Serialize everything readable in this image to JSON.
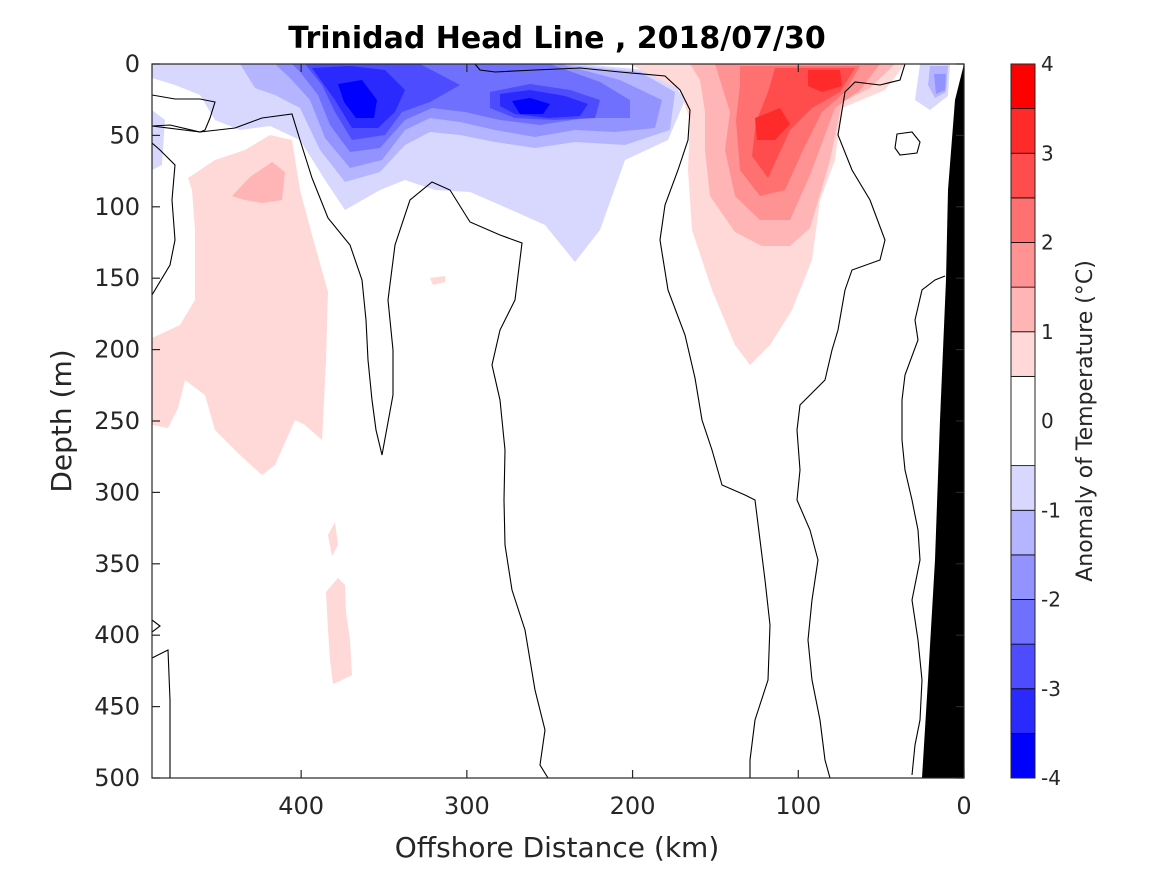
{
  "chart_data": {
    "type": "heatmap",
    "title": "Trinidad Head Line , 2018/07/30",
    "xlabel": "Offshore Distance (km)",
    "ylabel": "Depth (m)",
    "xlim": [
      490,
      0
    ],
    "ylim": [
      500,
      0
    ],
    "x_reversed": true,
    "y_reversed": true,
    "xticks": [
      400,
      300,
      200,
      100,
      0
    ],
    "yticks": [
      0,
      50,
      100,
      150,
      200,
      250,
      300,
      350,
      400,
      450,
      500
    ],
    "colorbar": {
      "label": "Anomaly of Temperature (°C)",
      "range": [
        -4,
        4
      ],
      "ticks": [
        4,
        3,
        2,
        1,
        0,
        -1,
        -2,
        -3,
        -4
      ],
      "levels": [
        -4,
        -3.5,
        -3,
        -2.5,
        -2,
        -1.5,
        -1,
        -0.5,
        0.5,
        1,
        1.5,
        2,
        2.5,
        3,
        3.5,
        4
      ],
      "colors": [
        "#0000ff",
        "#2a2aff",
        "#4d4dff",
        "#7070ff",
        "#9393ff",
        "#b5b5ff",
        "#d8d8ff",
        "#ffffff",
        "#ffd8d8",
        "#ffb5b5",
        "#ff9393",
        "#ff7070",
        "#ff4d4d",
        "#ff2a2a",
        "#ff0000"
      ]
    },
    "anomaly_features": [
      {
        "sign": "negative",
        "center_km": 360,
        "center_depth_m": 30,
        "peak_c": -3.5
      },
      {
        "sign": "negative",
        "center_km": 250,
        "center_depth_m": 35,
        "peak_c": -3.5
      },
      {
        "sign": "negative",
        "center_km": 20,
        "center_depth_m": 15,
        "peak_c": -1.5
      },
      {
        "sign": "positive",
        "center_km": 120,
        "center_depth_m": 45,
        "peak_c": 3.0
      },
      {
        "sign": "positive",
        "center_km": 85,
        "center_depth_m": 10,
        "peak_c": 3.0
      },
      {
        "sign": "positive",
        "center_km": 420,
        "center_depth_m": 80,
        "peak_c": 1.5
      },
      {
        "sign": "positive",
        "center_km": 410,
        "center_depth_m": 200,
        "peak_c": 1.0
      },
      {
        "sign": "positive",
        "center_km": 385,
        "center_depth_m": 400,
        "peak_c": 1.0
      }
    ],
    "bathymetry_color": "#000000",
    "grid": false
  }
}
